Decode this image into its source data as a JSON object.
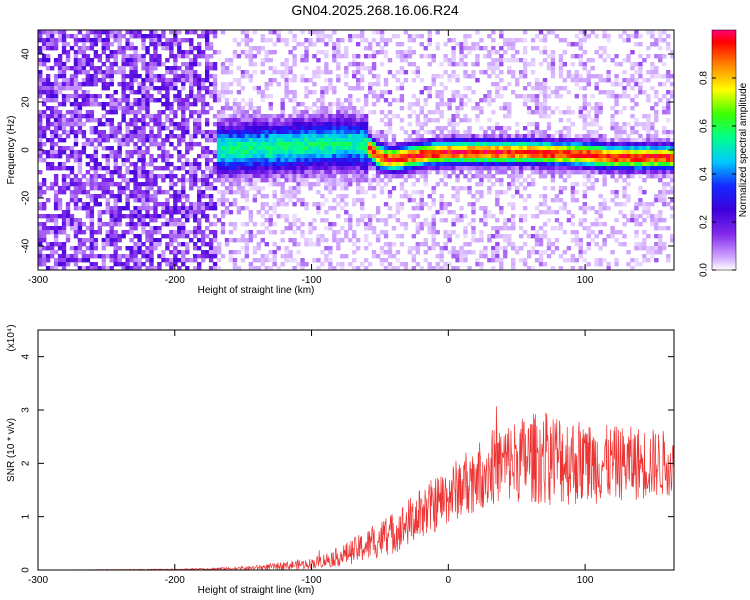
{
  "title": "GN04.2025.268.16.06.R24",
  "chart_data": [
    {
      "type": "heatmap",
      "title": "GN04.2025.268.16.06.R24",
      "xlabel": "Height of straight line (km)",
      "ylabel": "Frequency (Hz)",
      "xlim": [
        -300,
        165
      ],
      "ylim": [
        -50,
        50
      ],
      "xticks": [
        -300,
        -200,
        -100,
        0,
        100
      ],
      "yticks": [
        -40,
        -20,
        0,
        20,
        40
      ],
      "noise_region_x": [
        -300,
        -170
      ],
      "signal_ridge": {
        "x": [
          -170,
          -130,
          -100,
          -80,
          -60,
          -50,
          -40,
          -20,
          0,
          20,
          60,
          100,
          120,
          165
        ],
        "freq": [
          0,
          1,
          2,
          3,
          2,
          -3,
          -4,
          -2,
          -1,
          -1,
          -1,
          -2,
          -3,
          -3
        ]
      },
      "colorbar": {
        "label": "Normalized spectral amplitude",
        "range": [
          0.0,
          1.0
        ],
        "ticks": [
          "0.0",
          "0.2",
          "0.4",
          "0.6",
          "0.8"
        ],
        "colors": [
          "#ffffff",
          "#c080ff",
          "#6000e0",
          "#2020ff",
          "#00c0ff",
          "#00ff80",
          "#40ff00",
          "#ffff00",
          "#ff8000",
          "#ff0000",
          "#ff0080"
        ]
      }
    },
    {
      "type": "line",
      "xlabel": "Height of straight line (km)",
      "ylabel": "SNR (10 * v/v)",
      "scale_note": "(x10⁴)",
      "xlim": [
        -300,
        165
      ],
      "ylim": [
        0,
        4.5
      ],
      "xticks": [
        -300,
        -200,
        -100,
        0,
        100
      ],
      "yticks": [
        0,
        1,
        2,
        3,
        4
      ],
      "series": [
        {
          "name": "SNR",
          "color": "#ee3333",
          "x": [
            -300,
            -200,
            -150,
            -130,
            -120,
            -100,
            -80,
            -60,
            -40,
            -20,
            0,
            20,
            40,
            60,
            80,
            100,
            120,
            140,
            165
          ],
          "mean": [
            0.0,
            0.01,
            0.03,
            0.06,
            0.08,
            0.12,
            0.25,
            0.45,
            0.7,
            1.05,
            1.4,
            1.75,
            2.0,
            2.1,
            2.1,
            2.0,
            2.0,
            2.0,
            2.0
          ],
          "amp": [
            0.0,
            0.01,
            0.03,
            0.06,
            0.08,
            0.1,
            0.18,
            0.3,
            0.4,
            0.5,
            0.55,
            0.65,
            0.75,
            0.85,
            0.9,
            0.8,
            0.7,
            0.7,
            0.6
          ]
        }
      ]
    }
  ]
}
